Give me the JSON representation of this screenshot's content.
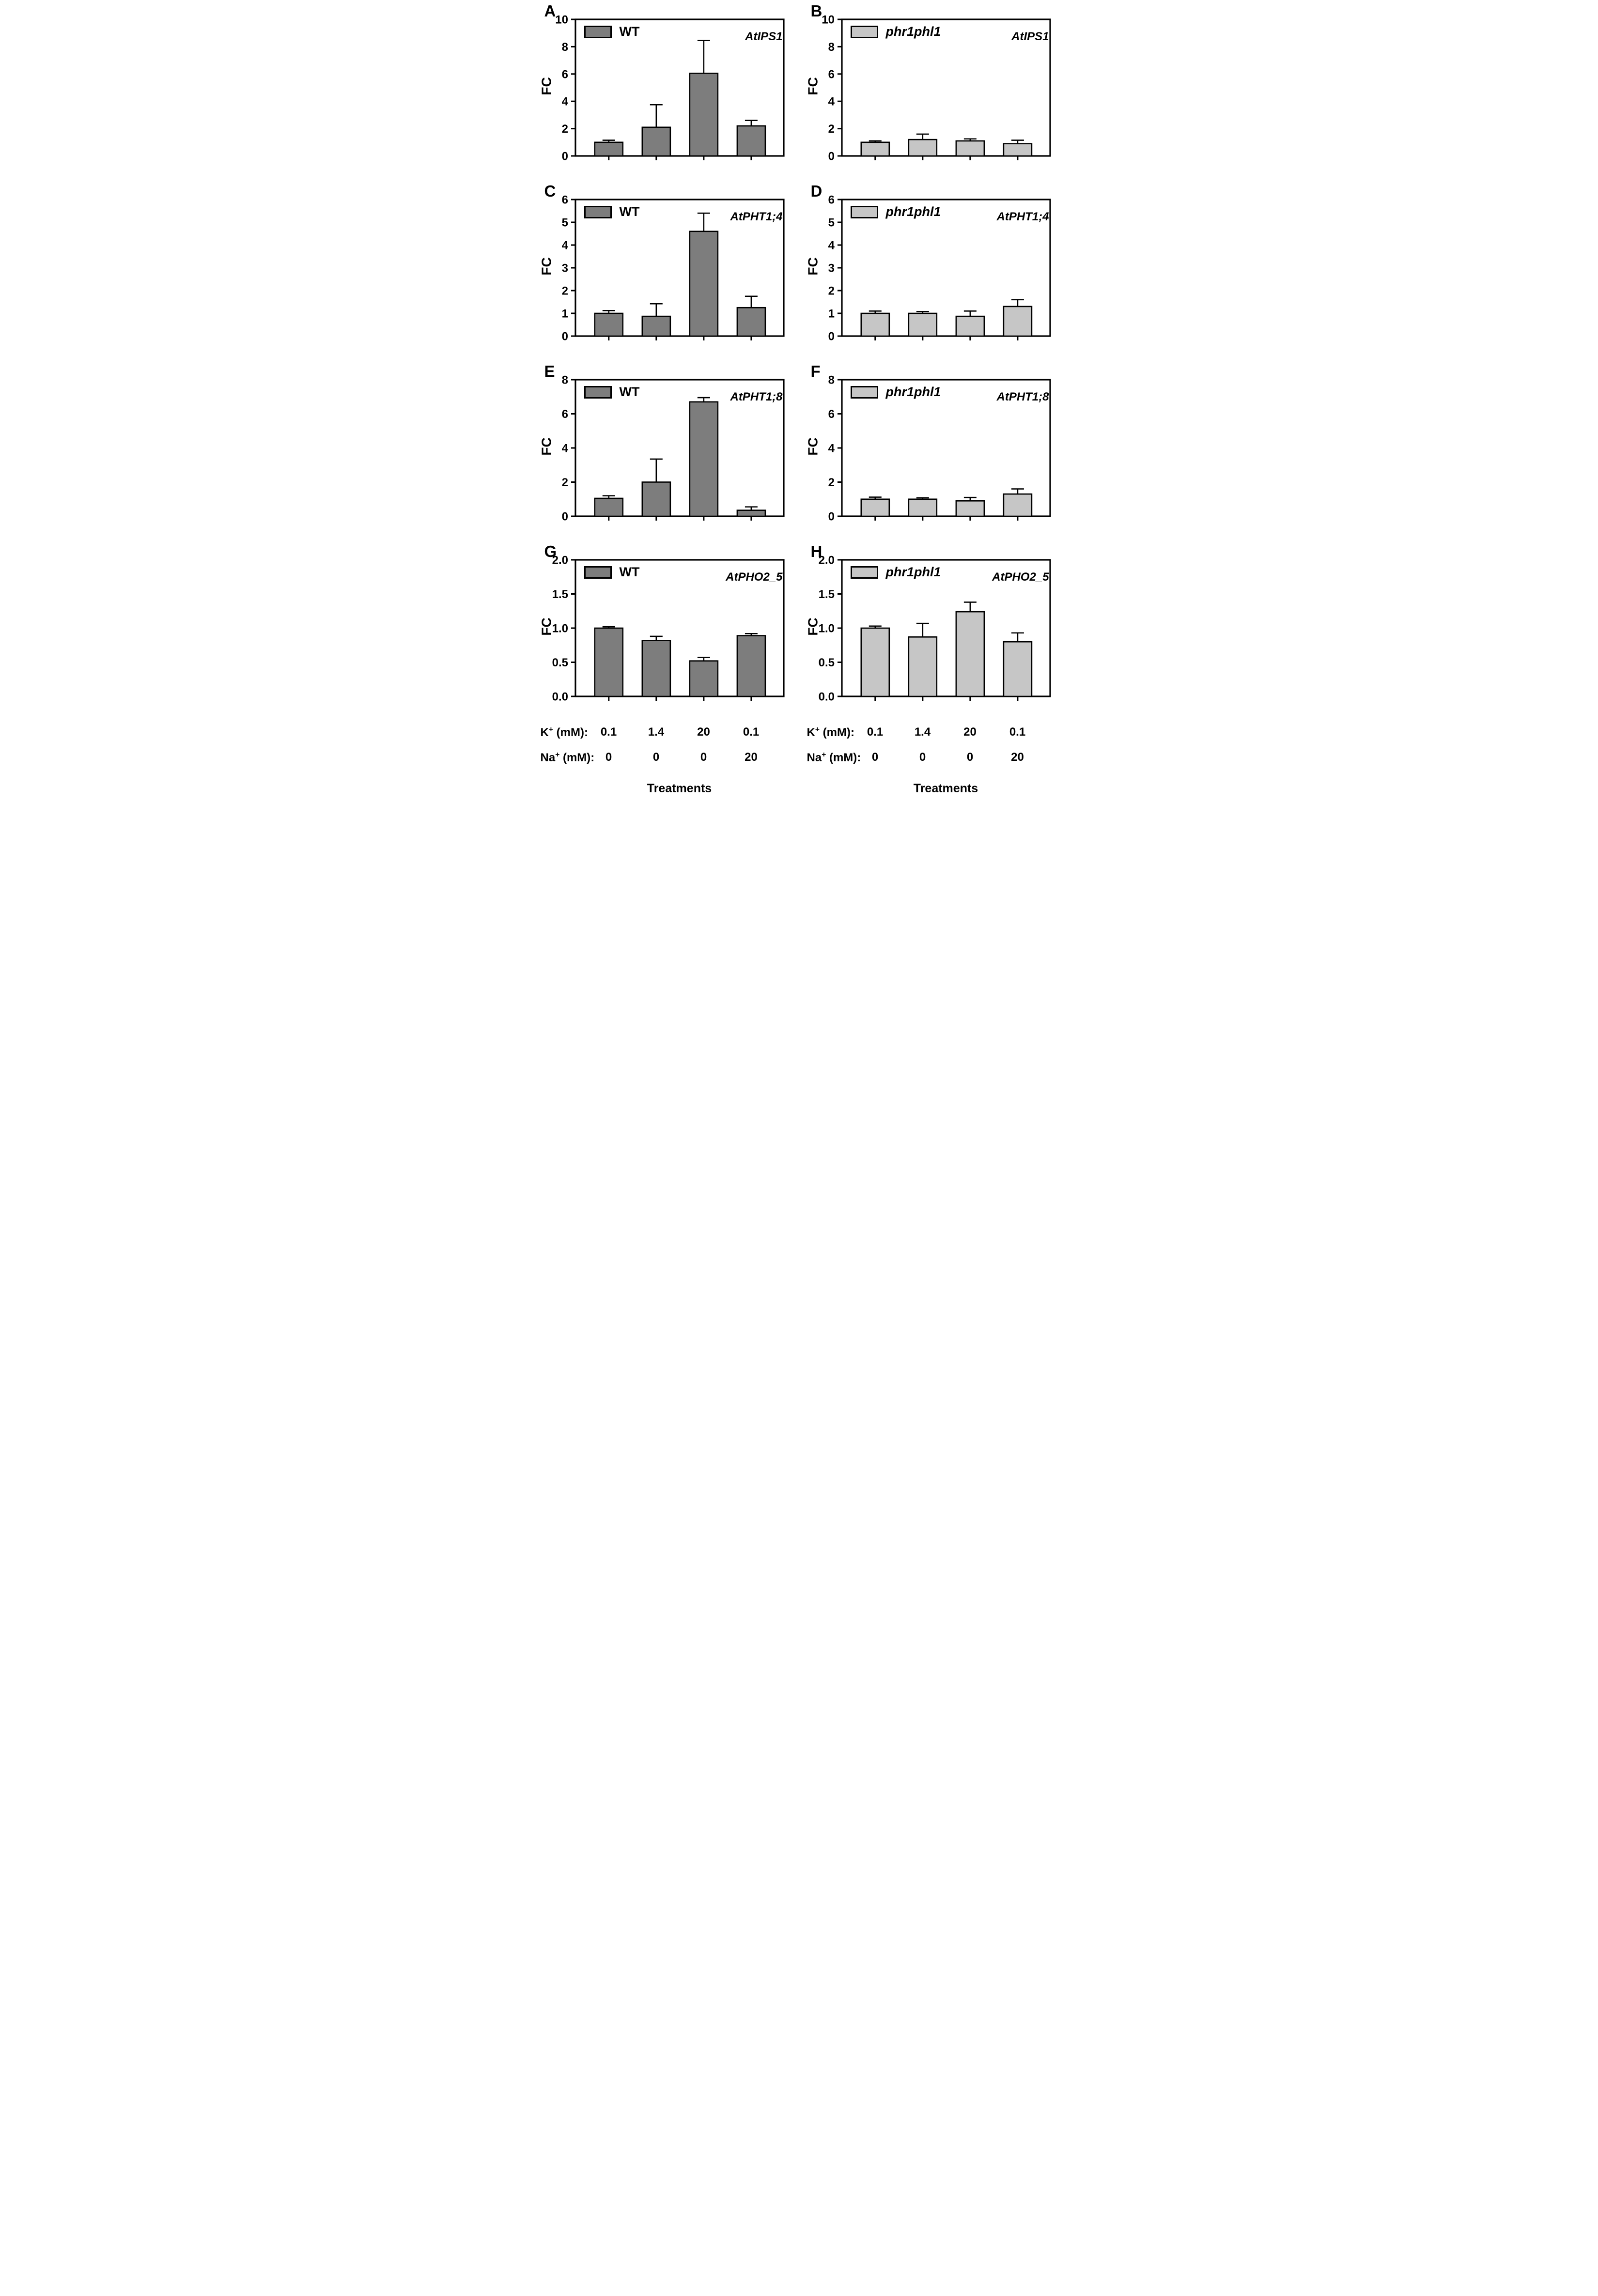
{
  "figure_background": "#ffffff",
  "bar_border_color": "#000000",
  "categories": [
    "K+ 0.1 mM / Na+ 0 mM",
    "K+ 1.4 mM / Na+ 0 mM",
    "K+ 20 mM / Na+ 0 mM",
    "K+ 0.1 mM / Na+ 20 mM"
  ],
  "chart_data": [
    {
      "type": "bar",
      "panel": "A",
      "legend": "WT",
      "legend_italic": false,
      "gene": "AtIPS1",
      "ylabel": "FC",
      "ylim": [
        0,
        10
      ],
      "ytick_step": 2,
      "ytick_decimals": false,
      "bar_color": "#7d7d7d",
      "values": [
        1.0,
        2.1,
        6.05,
        2.2
      ],
      "errors": [
        0.15,
        1.65,
        2.4,
        0.4
      ],
      "grid": false,
      "legend_position": "top-left"
    },
    {
      "type": "bar",
      "panel": "B",
      "legend": "phr1phl1",
      "legend_italic": true,
      "gene": "AtIPS1",
      "ylabel": "FC",
      "ylim": [
        0,
        10
      ],
      "ytick_step": 2,
      "ytick_decimals": false,
      "bar_color": "#c6c6c6",
      "values": [
        1.0,
        1.2,
        1.1,
        0.9
      ],
      "errors": [
        0.1,
        0.4,
        0.15,
        0.25
      ],
      "grid": false,
      "legend_position": "top-left"
    },
    {
      "type": "bar",
      "panel": "C",
      "legend": "WT",
      "legend_italic": false,
      "gene": "AtPHT1;4",
      "ylabel": "FC",
      "ylim": [
        0,
        6
      ],
      "ytick_step": 1,
      "ytick_decimals": false,
      "bar_color": "#7d7d7d",
      "values": [
        1.0,
        0.87,
        4.6,
        1.25
      ],
      "errors": [
        0.12,
        0.55,
        0.8,
        0.5
      ],
      "grid": false,
      "legend_position": "top-left"
    },
    {
      "type": "bar",
      "panel": "D",
      "legend": "phr1phl1",
      "legend_italic": true,
      "gene": "AtPHT1;4",
      "ylabel": "FC",
      "ylim": [
        0,
        6
      ],
      "ytick_step": 1,
      "ytick_decimals": false,
      "bar_color": "#c6c6c6",
      "values": [
        1.0,
        1.0,
        0.87,
        1.3
      ],
      "errors": [
        0.1,
        0.08,
        0.23,
        0.3
      ],
      "grid": false,
      "legend_position": "top-left"
    },
    {
      "type": "bar",
      "panel": "E",
      "legend": "WT",
      "legend_italic": false,
      "gene": "AtPHT1;8",
      "ylabel": "FC",
      "ylim": [
        0,
        8
      ],
      "ytick_step": 2,
      "ytick_decimals": false,
      "bar_color": "#7d7d7d",
      "values": [
        1.05,
        2.0,
        6.7,
        0.35
      ],
      "errors": [
        0.15,
        1.35,
        0.25,
        0.2
      ],
      "grid": false,
      "legend_position": "top-left"
    },
    {
      "type": "bar",
      "panel": "F",
      "legend": "phr1phl1",
      "legend_italic": true,
      "gene": "AtPHT1;8",
      "ylabel": "FC",
      "ylim": [
        0,
        8
      ],
      "ytick_step": 2,
      "ytick_decimals": false,
      "bar_color": "#c6c6c6",
      "values": [
        1.0,
        1.0,
        0.9,
        1.3
      ],
      "errors": [
        0.12,
        0.08,
        0.2,
        0.3
      ],
      "grid": false,
      "legend_position": "top-left"
    },
    {
      "type": "bar",
      "panel": "G",
      "legend": "WT",
      "legend_italic": false,
      "gene": "AtPHO2_5",
      "ylabel": "FC",
      "ylim": [
        0,
        2
      ],
      "ytick_step": 0.5,
      "ytick_decimals": true,
      "bar_color": "#7d7d7d",
      "values": [
        1.0,
        0.82,
        0.52,
        0.89
      ],
      "errors": [
        0.02,
        0.06,
        0.05,
        0.03
      ],
      "grid": false,
      "legend_position": "top-left"
    },
    {
      "type": "bar",
      "panel": "H",
      "legend": "phr1phl1",
      "legend_italic": true,
      "gene": "AtPHO2_5",
      "ylabel": "FC",
      "ylim": [
        0,
        2
      ],
      "ytick_step": 0.5,
      "ytick_decimals": true,
      "bar_color": "#c6c6c6",
      "values": [
        1.0,
        0.87,
        1.24,
        0.8
      ],
      "errors": [
        0.03,
        0.2,
        0.14,
        0.13
      ],
      "grid": false,
      "legend_position": "top-left"
    }
  ],
  "treatments": {
    "rows": [
      {
        "base": "K",
        "sup": "+",
        "rest": " (mM):",
        "values": [
          "0.1",
          "1.4",
          "20",
          "0.1"
        ]
      },
      {
        "base": "Na",
        "sup": "+",
        "rest": " (mM):",
        "values": [
          "0",
          "0",
          "0",
          "20"
        ]
      }
    ],
    "title": "Treatments"
  }
}
